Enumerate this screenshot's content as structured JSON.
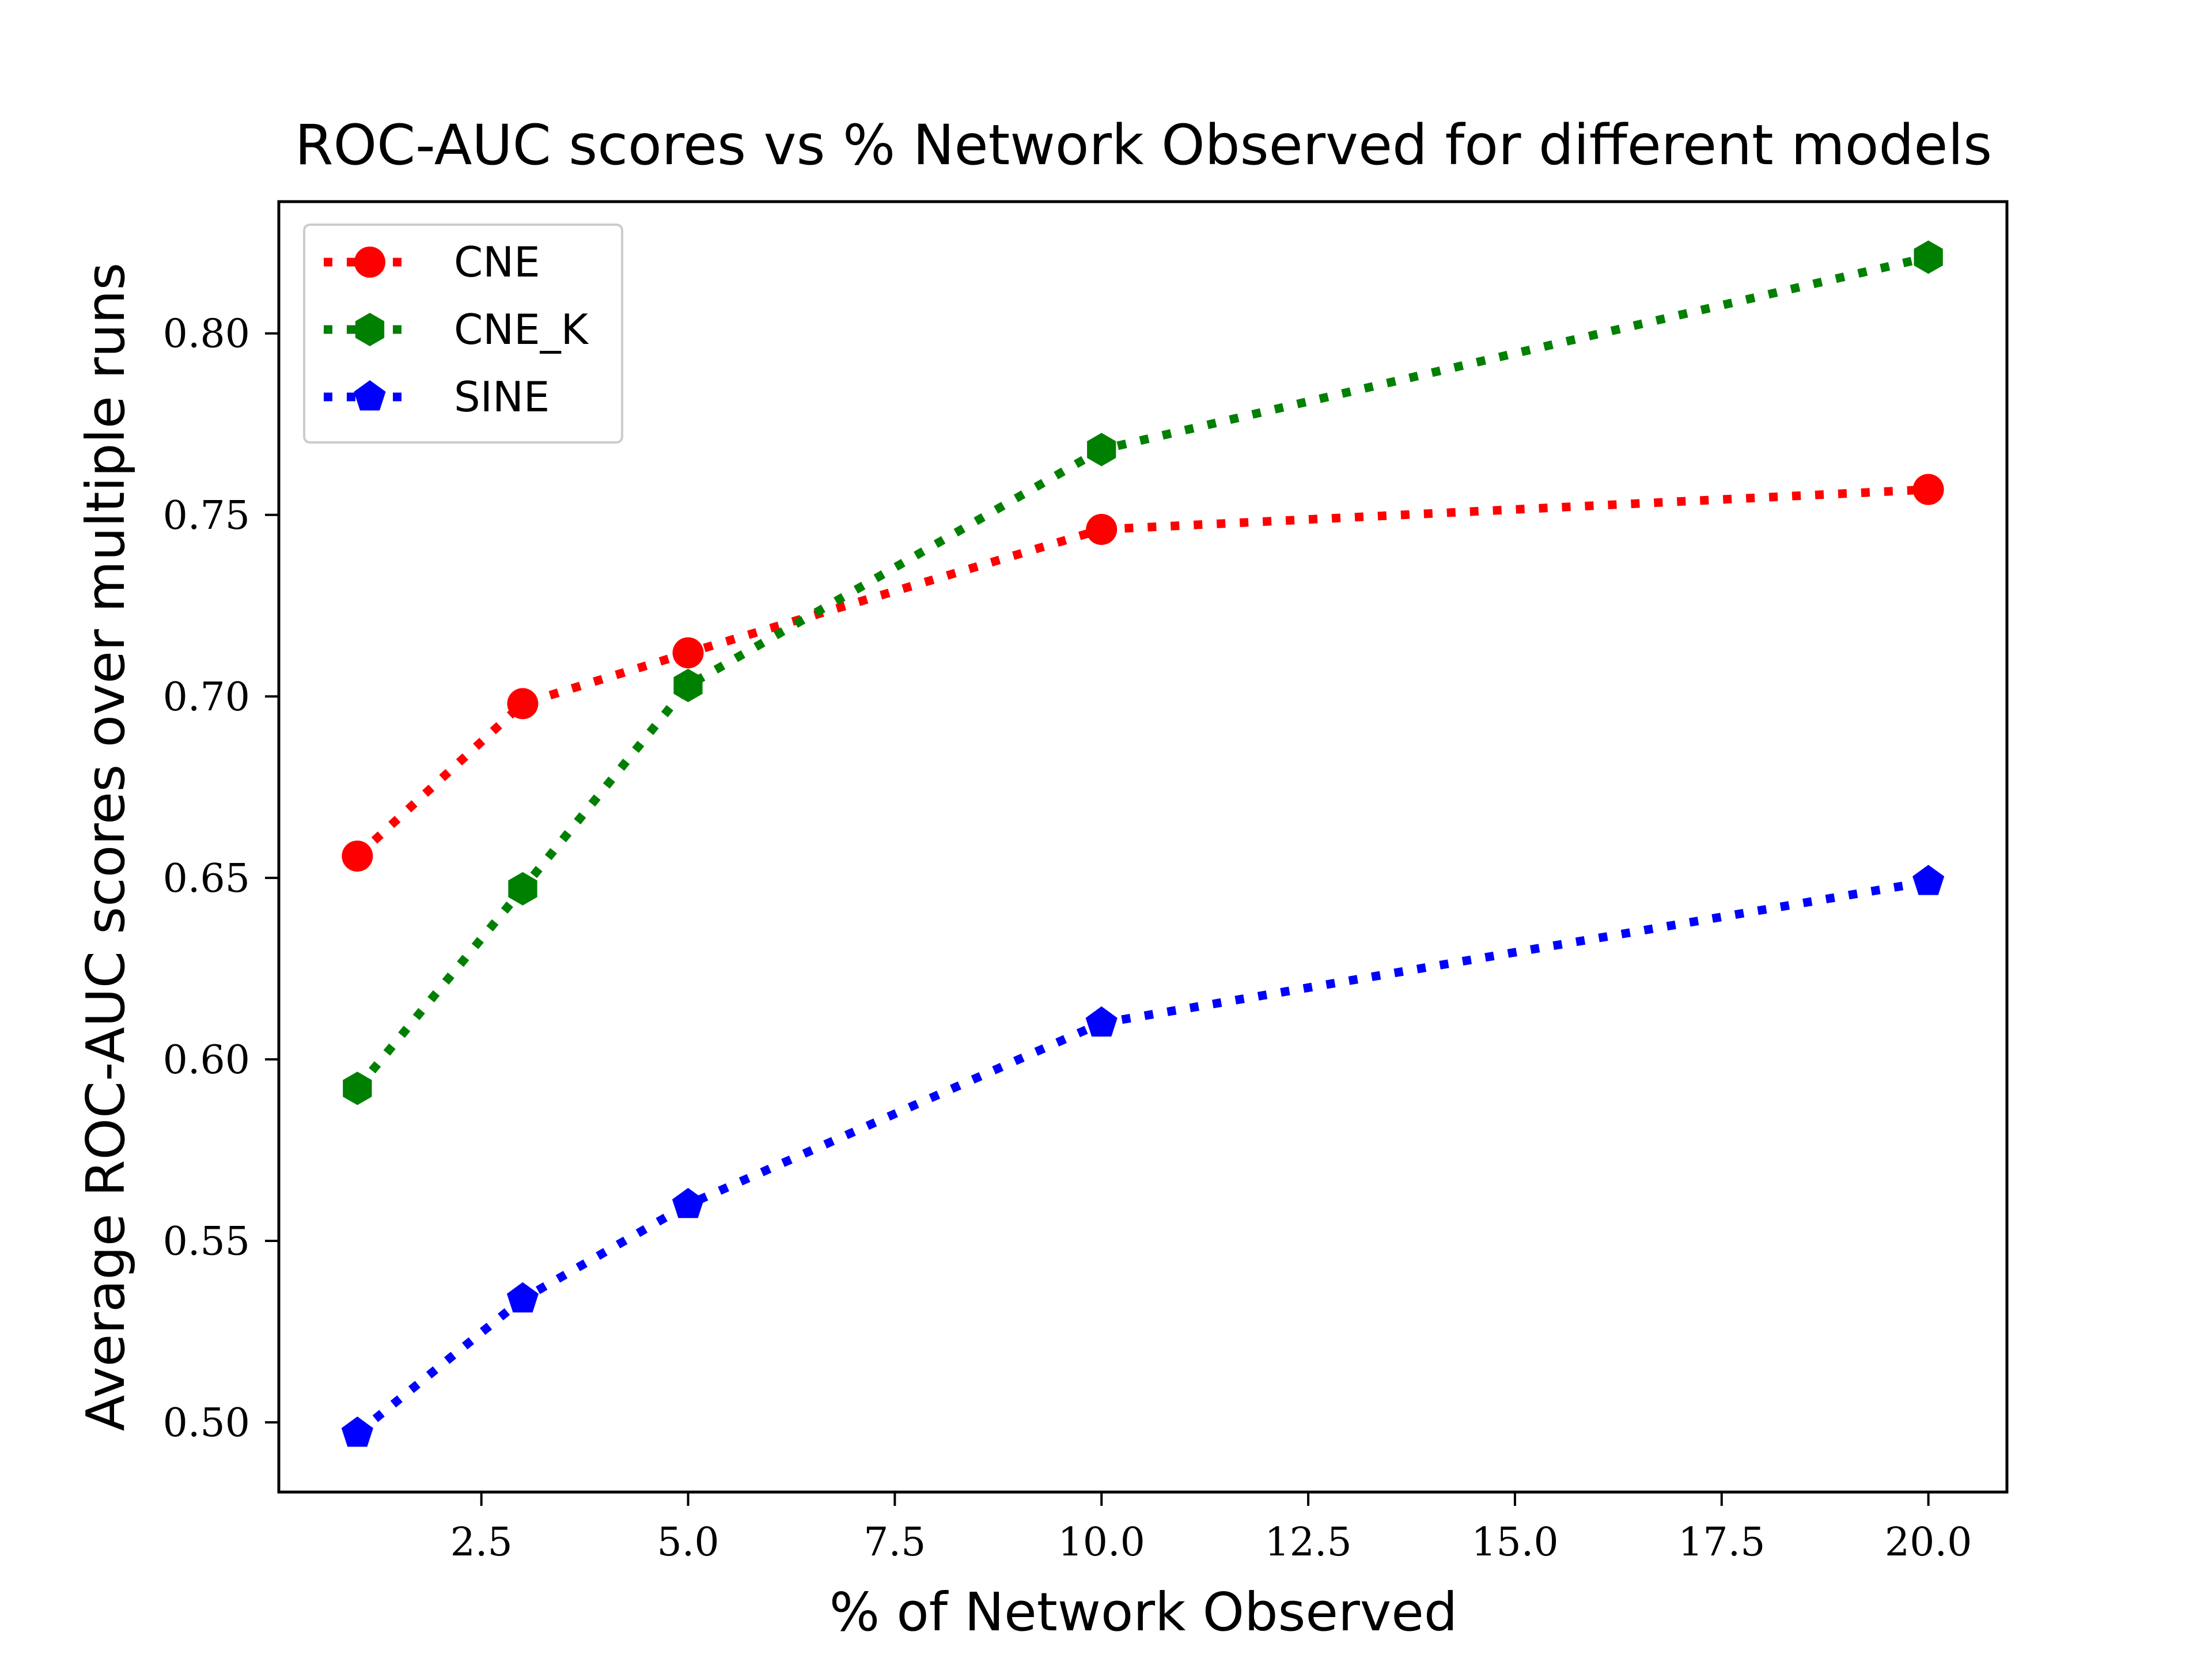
{
  "chart_data": {
    "type": "line",
    "title": "ROC-AUC scores vs % Network Observed for different models",
    "xlabel": "% of Network Observed",
    "ylabel": "Average ROC-AUC scores over multiple runs",
    "x": [
      1,
      3,
      5,
      10,
      20
    ],
    "xlim": [
      0.05,
      20.95
    ],
    "ylim": [
      0.4808,
      0.8363
    ],
    "xticks": [
      2.5,
      5.0,
      7.5,
      10.0,
      12.5,
      15.0,
      17.5,
      20.0
    ],
    "xtick_labels": [
      "2.5",
      "5.0",
      "7.5",
      "10.0",
      "12.5",
      "15.0",
      "17.5",
      "20.0"
    ],
    "yticks": [
      0.5,
      0.55,
      0.6,
      0.65,
      0.7,
      0.75,
      0.8
    ],
    "ytick_labels": [
      "0.50",
      "0.55",
      "0.60",
      "0.65",
      "0.70",
      "0.75",
      "0.80"
    ],
    "grid": false,
    "legend_position": "top-left",
    "series": [
      {
        "name": "CNE",
        "color": "#ff0000",
        "marker": "circle",
        "linestyle": "dotted",
        "values": [
          0.656,
          0.698,
          0.712,
          0.746,
          0.757
        ]
      },
      {
        "name": "CNE_K",
        "color": "#008000",
        "marker": "hexagon",
        "linestyle": "dotted",
        "values": [
          0.592,
          0.647,
          0.703,
          0.768,
          0.821
        ]
      },
      {
        "name": "SINE",
        "color": "#0000ff",
        "marker": "pentagon",
        "linestyle": "dotted",
        "values": [
          0.497,
          0.534,
          0.56,
          0.61,
          0.649
        ]
      }
    ]
  }
}
